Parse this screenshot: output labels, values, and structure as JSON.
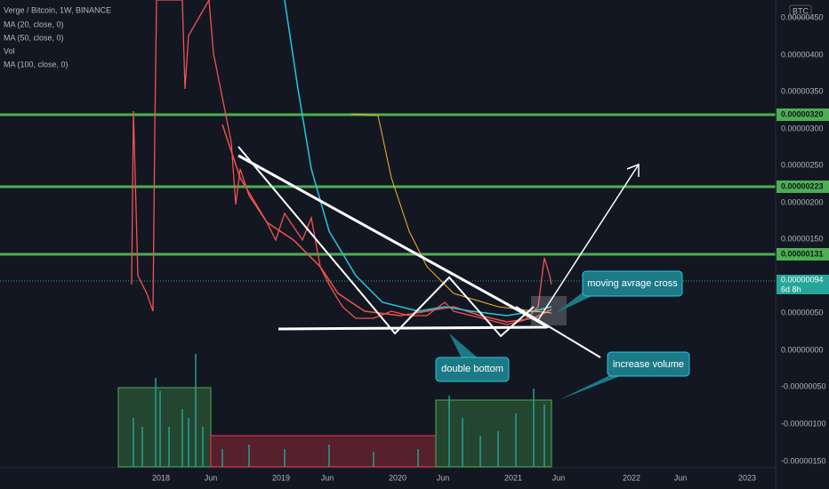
{
  "legend": {
    "symbol": "Verge / Bitcoin, 1W, BINANCE",
    "indicators": [
      "MA (20, close, 0)",
      "MA (50, close, 0)",
      "Vol",
      "MA (100, close, 0)"
    ]
  },
  "currency": "BTC",
  "price_axis": [
    "0.00000450",
    "0.00000400",
    "0.00000350",
    "0.00000300",
    "0.00000250",
    "0.00000200",
    "0.00000150",
    "0.00000050",
    "0.00000000",
    "-0.00000050",
    "-0.00000100",
    "-0.00000150"
  ],
  "levels": [
    "0.00000320",
    "0.00000223",
    "0.00000131"
  ],
  "last_price": {
    "price": "0.00000094",
    "countdown": "6d 8h"
  },
  "time_axis": [
    "2018",
    "Jun",
    "2019",
    "Jun",
    "2020",
    "Jun",
    "2021",
    "Jun",
    "2022",
    "Jun",
    "2023"
  ],
  "annotations": [
    "moving avrage cross",
    "double bottom",
    "increase volume"
  ]
}
